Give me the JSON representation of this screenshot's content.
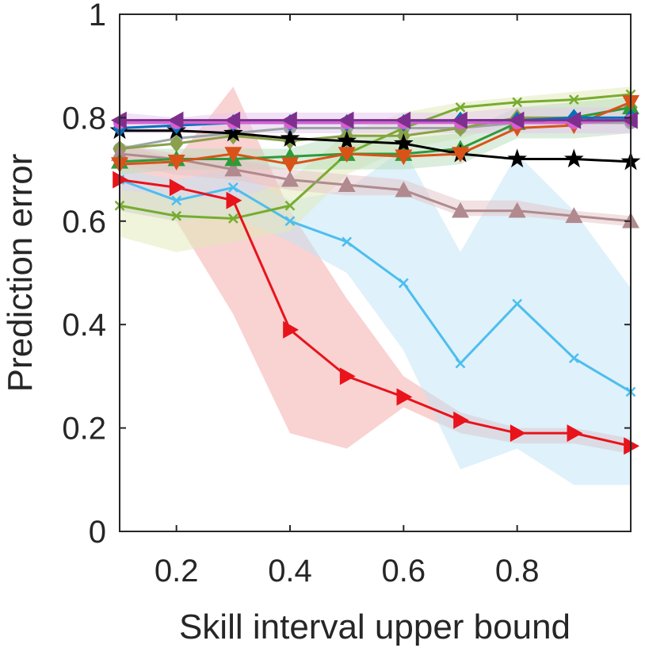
{
  "chart_data": {
    "type": "line",
    "title": "",
    "xlabel": "Skill interval upper bound",
    "ylabel": "Prediction error",
    "xlim": [
      0.1,
      1.0
    ],
    "ylim": [
      0,
      1
    ],
    "xticks": [
      0.2,
      0.4,
      0.6,
      0.8
    ],
    "xtick_labels": [
      "0.2",
      "0.4",
      "0.6",
      "0.8"
    ],
    "yticks": [
      0,
      0.2,
      0.4,
      0.6,
      0.8,
      1
    ],
    "ytick_labels": [
      "0",
      "0.2",
      "0.4",
      "0.6",
      "0.8",
      "1"
    ],
    "grid": false,
    "legend": "none",
    "x": [
      0.1,
      0.2,
      0.3,
      0.4,
      0.5,
      0.6,
      0.7,
      0.8,
      0.9,
      1.0
    ],
    "bands": [
      {
        "name": "red band",
        "color": "#f4a6a6",
        "upper": [
          0.75,
          0.72,
          0.86,
          0.62,
          0.45,
          0.3,
          0.23,
          0.2,
          0.2,
          0.18
        ],
        "lower": [
          0.62,
          0.6,
          0.42,
          0.19,
          0.16,
          0.24,
          0.19,
          0.17,
          0.17,
          0.15
        ]
      },
      {
        "name": "light blue band",
        "color": "#bfe3f5",
        "upper": [
          0.7,
          0.68,
          0.7,
          0.64,
          0.66,
          0.74,
          0.54,
          0.73,
          0.62,
          0.47
        ],
        "lower": [
          0.62,
          0.6,
          0.61,
          0.56,
          0.5,
          0.35,
          0.12,
          0.16,
          0.09,
          0.09
        ]
      },
      {
        "name": "yellow-green band",
        "color": "#dfe9b8",
        "upper": [
          0.66,
          0.65,
          0.64,
          0.68,
          0.77,
          0.81,
          0.83,
          0.84,
          0.85,
          0.86
        ],
        "lower": [
          0.57,
          0.54,
          0.56,
          0.58,
          0.69,
          0.74,
          0.76,
          0.79,
          0.8,
          0.8
        ]
      },
      {
        "name": "green band",
        "color": "#b7dcb9",
        "upper": [
          0.74,
          0.74,
          0.74,
          0.74,
          0.77,
          0.76,
          0.77,
          0.82,
          0.83,
          0.84
        ],
        "lower": [
          0.69,
          0.7,
          0.7,
          0.7,
          0.7,
          0.7,
          0.71,
          0.76,
          0.76,
          0.77
        ]
      },
      {
        "name": "violet band",
        "color": "#e6c6ee",
        "upper": [
          0.81,
          0.8,
          0.81,
          0.81,
          0.81,
          0.81,
          0.81,
          0.82,
          0.82,
          0.82
        ],
        "lower": [
          0.77,
          0.77,
          0.77,
          0.77,
          0.77,
          0.77,
          0.77,
          0.77,
          0.77,
          0.77
        ]
      },
      {
        "name": "mauve band",
        "color": "#e3c4c6",
        "upper": [
          0.75,
          0.73,
          0.72,
          0.7,
          0.69,
          0.68,
          0.64,
          0.64,
          0.62,
          0.61
        ],
        "lower": [
          0.71,
          0.69,
          0.68,
          0.66,
          0.65,
          0.65,
          0.61,
          0.61,
          0.6,
          0.59
        ]
      }
    ],
    "series": [
      {
        "name": "gray circle",
        "color": "#9aa5a8",
        "marker": "circle",
        "values": [
          0.74,
          0.76,
          0.77,
          0.78,
          0.78,
          0.78,
          0.78,
          0.79,
          0.79,
          0.79
        ]
      },
      {
        "name": "light blue cross",
        "color": "#4dbeee",
        "marker": "x",
        "values": [
          0.68,
          0.64,
          0.665,
          0.6,
          0.56,
          0.48,
          0.325,
          0.44,
          0.335,
          0.27
        ]
      },
      {
        "name": "yellow-green cross",
        "color": "#77ac30",
        "marker": "x",
        "values": [
          0.63,
          0.61,
          0.605,
          0.63,
          0.73,
          0.78,
          0.82,
          0.83,
          0.835,
          0.845
        ]
      },
      {
        "name": "olive diamond",
        "color": "#8aa04a",
        "marker": "diamond",
        "values": [
          0.74,
          0.75,
          0.765,
          0.755,
          0.765,
          0.765,
          0.78,
          0.8,
          0.8,
          0.82
        ]
      },
      {
        "name": "mauve triangle",
        "color": "#b08a8e",
        "marker": "triangle-up",
        "values": [
          0.73,
          0.72,
          0.7,
          0.68,
          0.67,
          0.66,
          0.62,
          0.62,
          0.61,
          0.6
        ]
      },
      {
        "name": "green triangle",
        "color": "#2e9a3a",
        "marker": "triangle-up",
        "values": [
          0.715,
          0.72,
          0.72,
          0.725,
          0.73,
          0.73,
          0.74,
          0.79,
          0.8,
          0.82
        ]
      },
      {
        "name": "black star",
        "color": "#000000",
        "marker": "star",
        "values": [
          0.775,
          0.775,
          0.77,
          0.76,
          0.755,
          0.75,
          0.73,
          0.72,
          0.72,
          0.715
        ]
      },
      {
        "name": "orange triangle",
        "color": "#d95319",
        "marker": "triangle-down",
        "values": [
          0.71,
          0.715,
          0.73,
          0.71,
          0.73,
          0.725,
          0.73,
          0.78,
          0.785,
          0.83
        ]
      },
      {
        "name": "blue diamond",
        "color": "#0072bd",
        "marker": "diamond",
        "values": [
          0.78,
          0.785,
          0.79,
          0.79,
          0.79,
          0.79,
          0.795,
          0.795,
          0.8,
          0.8
        ]
      },
      {
        "name": "magenta circle",
        "color": "#d65fd1",
        "marker": "circle",
        "values": [
          0.79,
          0.79,
          0.79,
          0.79,
          0.79,
          0.79,
          0.79,
          0.79,
          0.79,
          0.795
        ]
      },
      {
        "name": "purple triangle",
        "color": "#7e2f8e",
        "marker": "triangle-left",
        "values": [
          0.795,
          0.795,
          0.795,
          0.795,
          0.795,
          0.795,
          0.795,
          0.795,
          0.795,
          0.795
        ]
      },
      {
        "name": "red triangle",
        "color": "#e8131b",
        "marker": "triangle-right",
        "values": [
          0.68,
          0.665,
          0.64,
          0.39,
          0.3,
          0.26,
          0.215,
          0.19,
          0.19,
          0.165
        ]
      }
    ]
  }
}
